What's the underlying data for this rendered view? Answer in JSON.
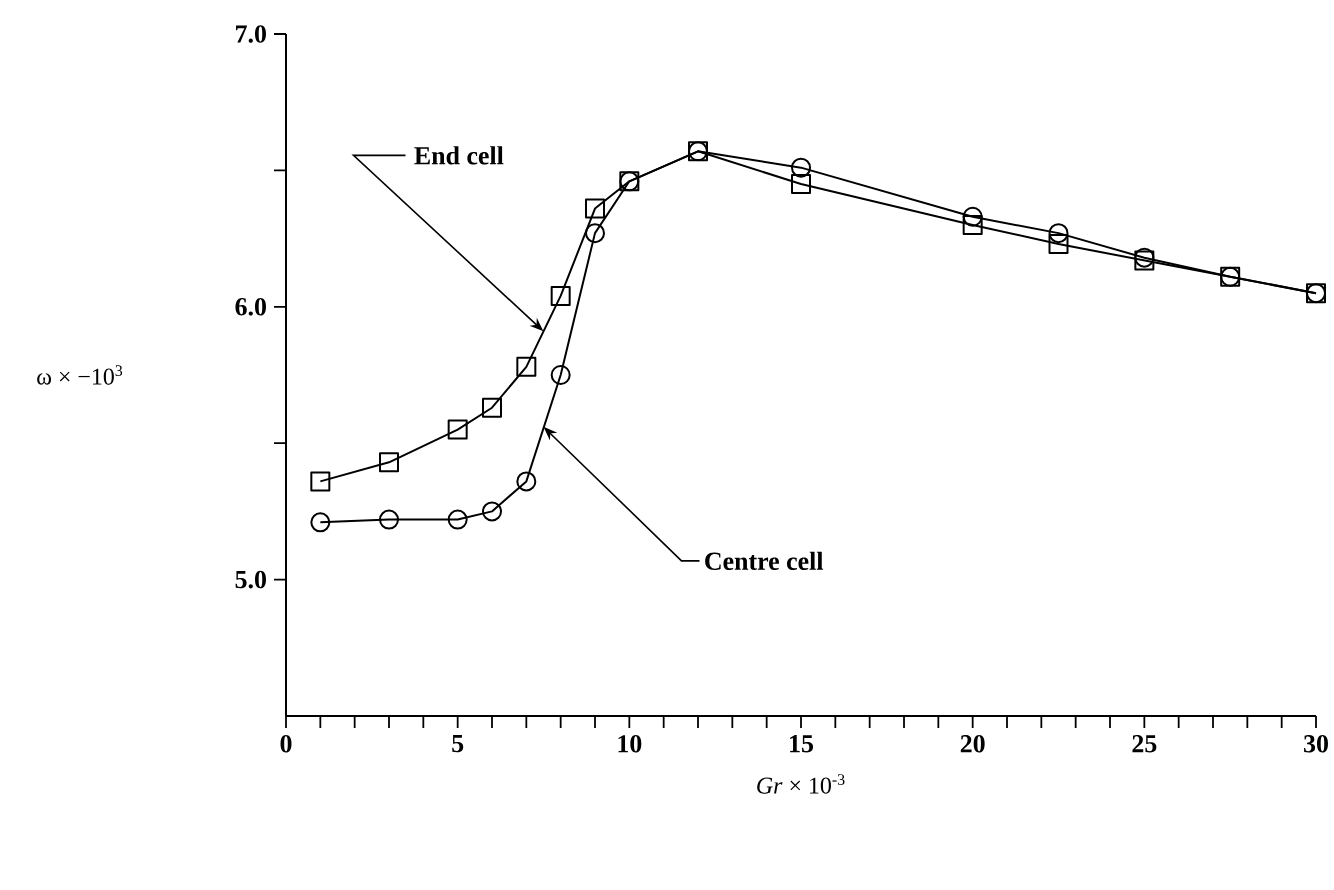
{
  "chart_data": {
    "type": "line",
    "xlabel": "*Gr* × 10$^{-3}$",
    "ylabel": "ω × −10$^{3}$",
    "xlim": [
      0,
      30
    ],
    "ylim": [
      4.5,
      7.0
    ],
    "xticks": [
      0,
      {
        "value": 1,
        "label": null
      },
      {
        "value": 2,
        "label": null
      },
      {
        "value": 3,
        "label": null
      },
      {
        "value": 4,
        "label": null
      },
      5,
      {
        "value": 6,
        "label": null
      },
      {
        "value": 7,
        "label": null
      },
      {
        "value": 8,
        "label": null
      },
      {
        "value": 9,
        "label": null
      },
      10,
      {
        "value": 11,
        "label": null
      },
      {
        "value": 12,
        "label": null
      },
      {
        "value": 13,
        "label": null
      },
      {
        "value": 14,
        "label": null
      },
      15,
      {
        "value": 16,
        "label": null
      },
      {
        "value": 17,
        "label": null
      },
      {
        "value": 18,
        "label": null
      },
      {
        "value": 19,
        "label": null
      },
      20,
      {
        "value": 21,
        "label": null
      },
      {
        "value": 22,
        "label": null
      },
      {
        "value": 23,
        "label": null
      },
      {
        "value": 24,
        "label": null
      },
      25,
      {
        "value": 26,
        "label": null
      },
      {
        "value": 27,
        "label": null
      },
      {
        "value": 28,
        "label": null
      },
      {
        "value": 29,
        "label": null
      },
      30
    ],
    "yticks": [
      {
        "value": 5.0,
        "label": "5.0"
      },
      {
        "value": 5.5,
        "label": null
      },
      {
        "value": 6.0,
        "label": "6.0"
      },
      {
        "value": 6.5,
        "label": null
      },
      {
        "value": 7.0,
        "label": "7.0"
      }
    ],
    "line_style": "solid",
    "x": [
      1,
      3,
      5,
      6,
      7,
      8,
      9,
      10,
      12,
      15,
      20,
      22.5,
      25,
      27.5,
      30
    ],
    "series": [
      {
        "color": "#000000",
        "marker": "square",
        "values": [
          5.36,
          5.43,
          5.55,
          5.63,
          5.78,
          6.04,
          6.36,
          6.46,
          6.57,
          6.45,
          6.3,
          6.23,
          6.17,
          6.11,
          6.05
        ]
      },
      {
        "color": "#000000",
        "marker": "circle",
        "values": [
          5.21,
          5.22,
          5.22,
          5.25,
          5.36,
          5.75,
          6.27,
          6.46,
          6.57,
          6.51,
          6.33,
          6.27,
          6.18,
          6.11,
          6.05
        ]
      }
    ],
    "annotations": [
      {
        "text": "End cell",
        "x": 7.5,
        "y": 5.91
      },
      {
        "text": "Centre cell",
        "x": 7.5,
        "y": 5.56
      }
    ]
  }
}
